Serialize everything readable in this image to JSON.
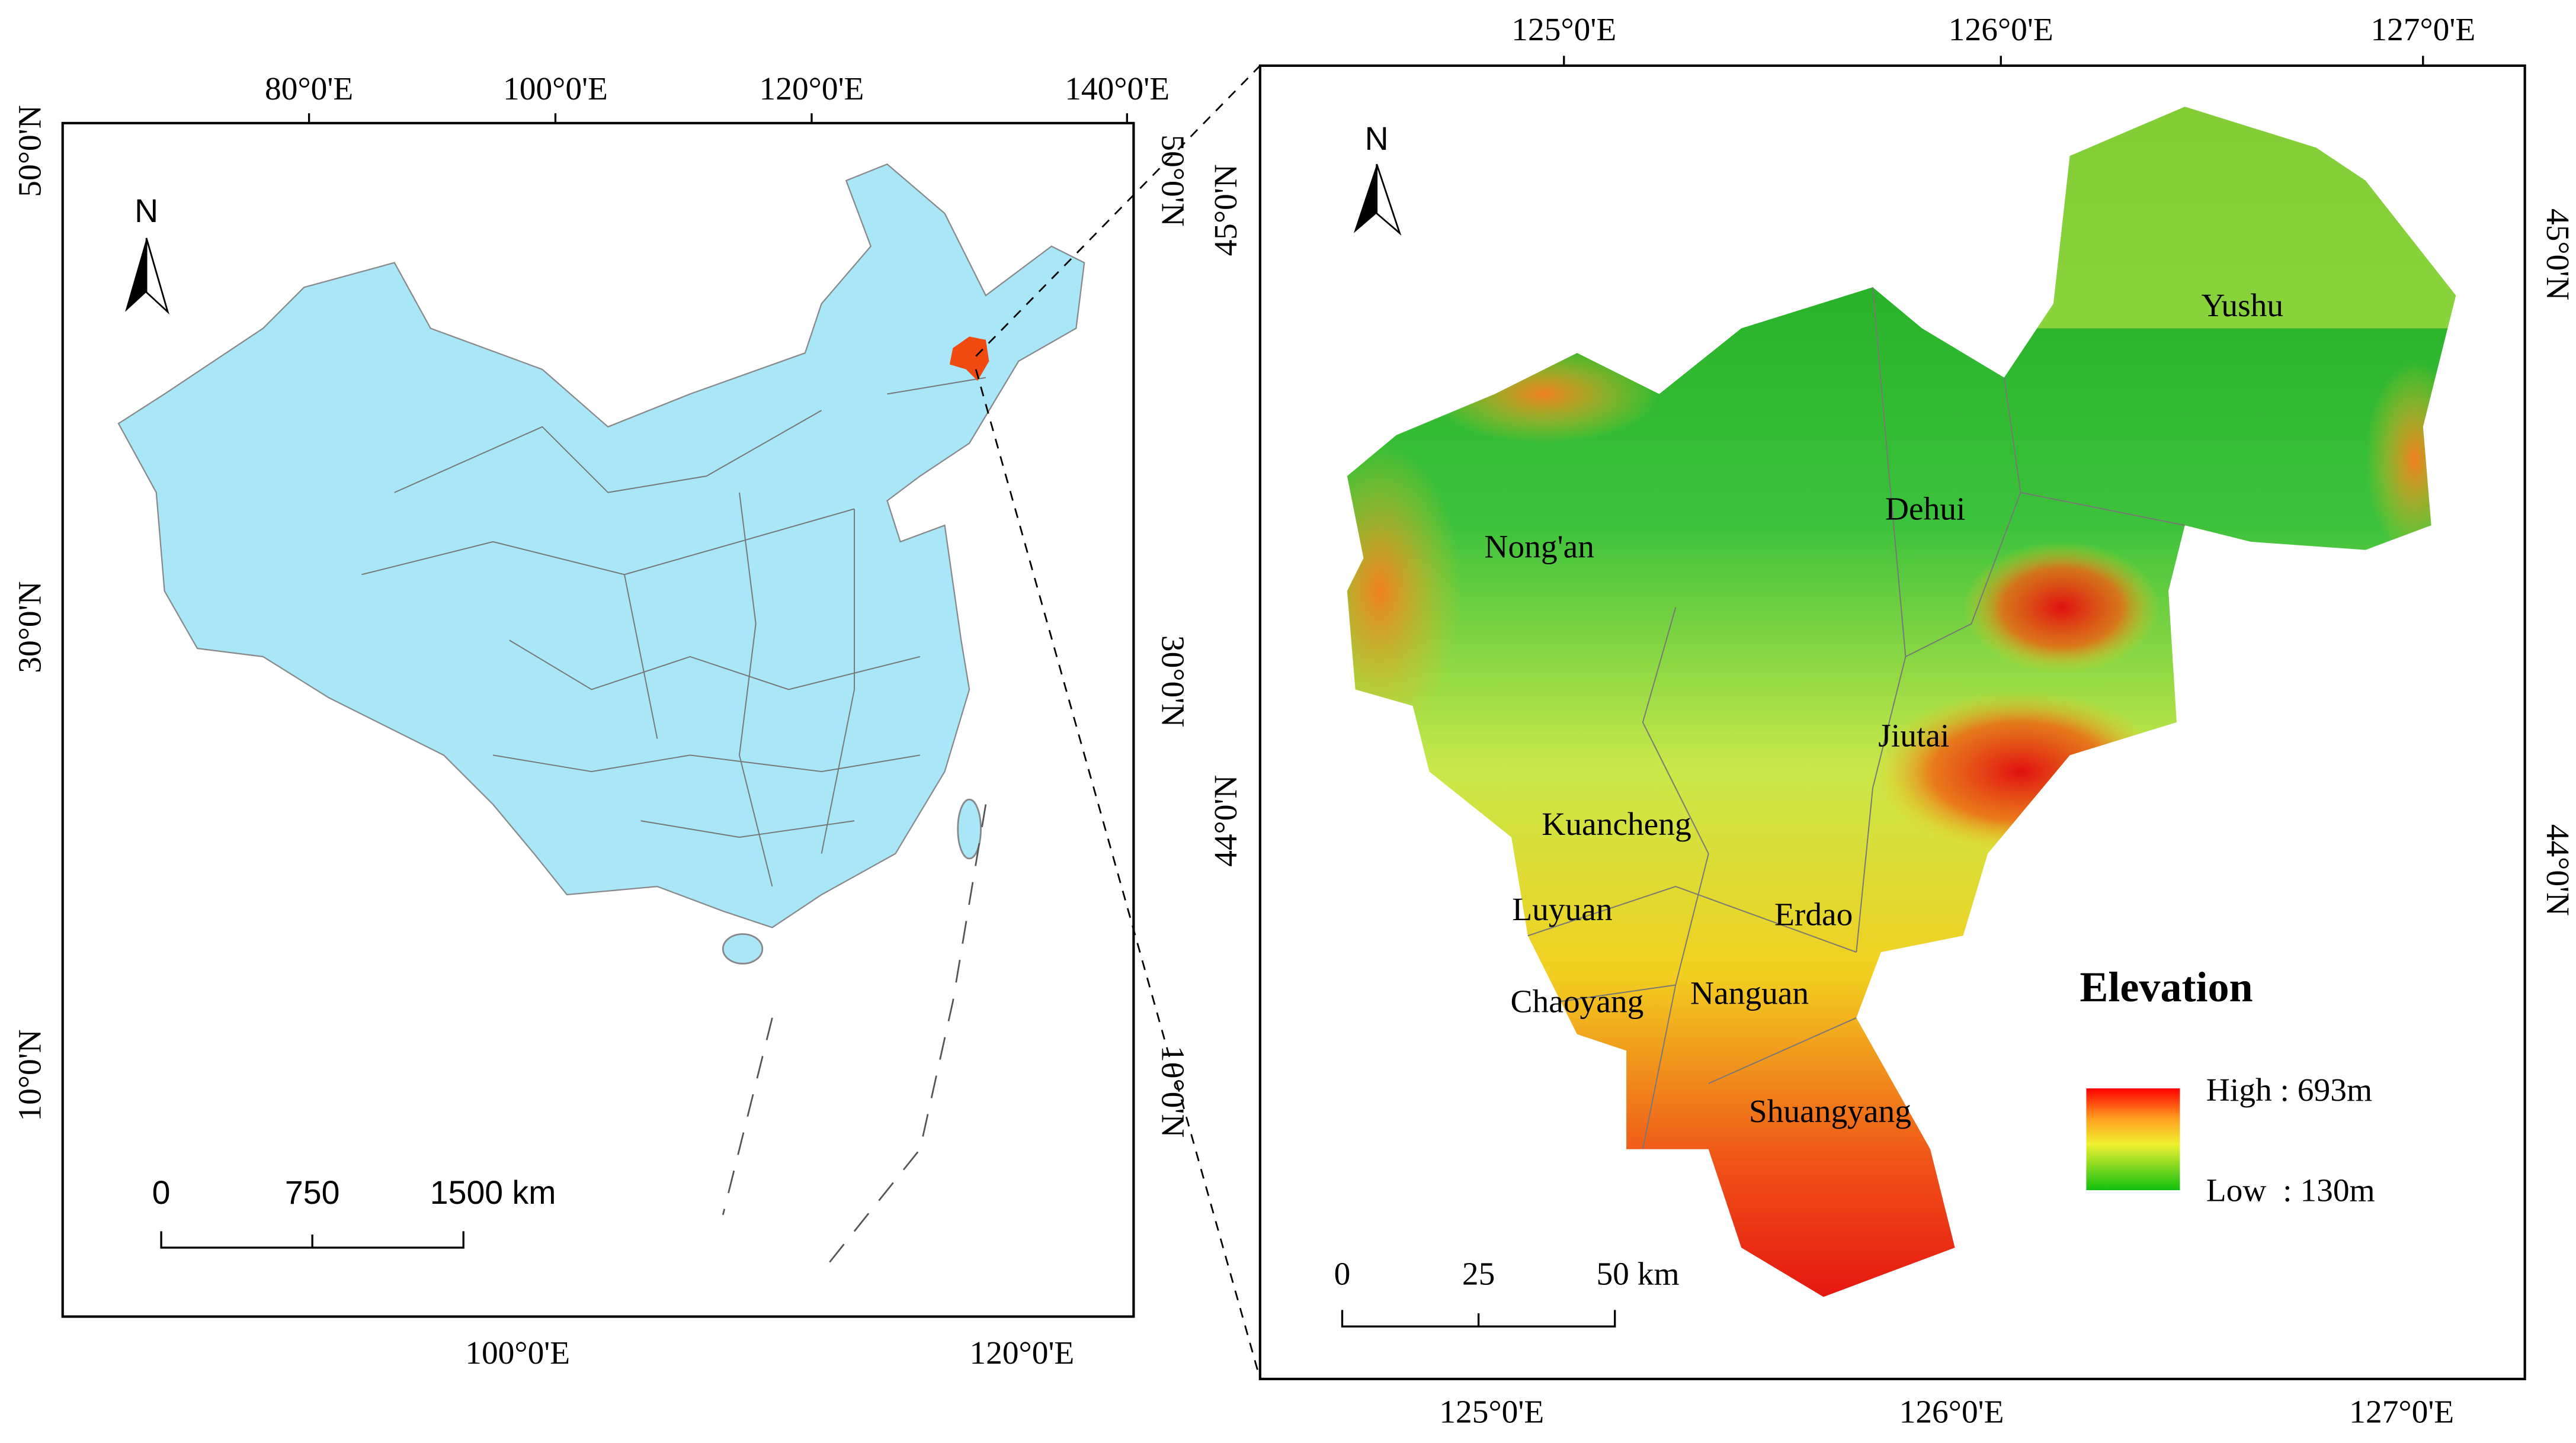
{
  "left_map": {
    "top_ticks": [
      "80°0'E",
      "100°0'E",
      "120°0'E",
      "140°0'E"
    ],
    "bottom_ticks": [
      "100°0'E",
      "120°0'E"
    ],
    "left_ticks": [
      "50°0'N",
      "30°0'N",
      "10°0'N"
    ],
    "right_ticks": [
      "50°0'N",
      "30°0'N",
      "10°0'N"
    ],
    "north": "N",
    "scale_labels": [
      "0",
      "750",
      "1500 km"
    ]
  },
  "right_map": {
    "top_ticks": [
      "125°0'E",
      "126°0'E",
      "127°0'E"
    ],
    "bottom_ticks": [
      "125°0'E",
      "126°0'E",
      "127°0'E"
    ],
    "left_ticks": [
      "45°0'N",
      "44°0'N"
    ],
    "right_ticks": [
      "45°0'N",
      "44°0'N"
    ],
    "north": "N",
    "places": [
      "Yushu",
      "Dehui",
      "Nong'an",
      "Jiutai",
      "Kuancheng",
      "Erdao",
      "Luyuan",
      "Chaoyang",
      "Nanguan",
      "Shuangyang"
    ],
    "legend": {
      "title": "Elevation",
      "high": "High : 693m",
      "low": "Low  : 130m"
    },
    "scale_labels": [
      "0",
      "25",
      "50 km"
    ]
  }
}
